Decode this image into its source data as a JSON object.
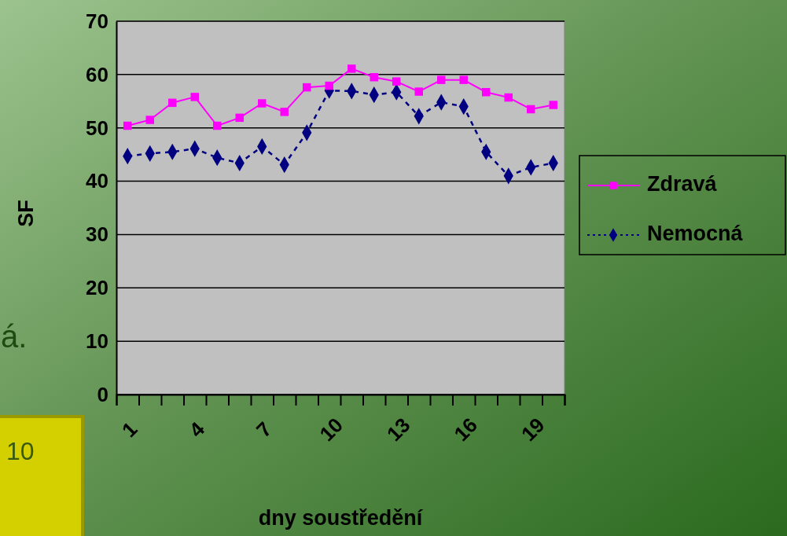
{
  "chart_data": {
    "type": "line",
    "xlabel": "dny soustředění",
    "ylabel": "SF",
    "categories": [
      "1",
      null,
      null,
      "4",
      null,
      null,
      "7",
      null,
      null,
      "10",
      null,
      null,
      "13",
      null,
      null,
      "16",
      null,
      null,
      "19",
      null
    ],
    "series": [
      {
        "name": "Zdravá",
        "color": "#ff00ff",
        "marker": "square",
        "line_style": "solid",
        "values": [
          50.4,
          51.5,
          54.7,
          55.8,
          50.4,
          51.9,
          54.6,
          53.0,
          57.6,
          57.9,
          61.1,
          59.5,
          58.7,
          56.8,
          59.0,
          59.0,
          56.7,
          55.7,
          53.5,
          54.3
        ]
      },
      {
        "name": "Nemocná",
        "color": "#000080",
        "marker": "diamond",
        "line_style": "dashed",
        "values": [
          44.7,
          45.2,
          45.5,
          46.1,
          44.4,
          43.4,
          46.5,
          43.1,
          49.1,
          57.0,
          56.9,
          56.2,
          56.7,
          52.2,
          54.8,
          54.0,
          45.5,
          41.0,
          42.6,
          43.4
        ]
      }
    ],
    "ylim": [
      0,
      70
    ],
    "yticks": [
      0,
      10,
      20,
      30,
      40,
      50,
      60,
      70
    ],
    "grid": "y",
    "legend": "right",
    "annotations": [
      "á.",
      "10"
    ]
  }
}
